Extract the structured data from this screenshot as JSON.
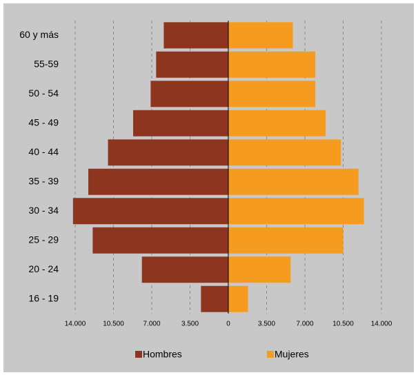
{
  "chart_data": {
    "type": "pyramid",
    "categories": [
      "60 y más",
      "55-59",
      "50 - 54",
      "45 - 49",
      "40 - 44",
      "35 - 39",
      "30 - 34",
      "25 - 29",
      "20 - 24",
      "16 - 19"
    ],
    "series": [
      {
        "name": "Hombres",
        "color": "#8e3520",
        "side": "left",
        "values": [
          5900,
          6600,
          7100,
          8700,
          11000,
          12800,
          14200,
          12400,
          7900,
          2500
        ]
      },
      {
        "name": "Mujeres",
        "color": "#f49b20",
        "side": "right",
        "values": [
          5900,
          7950,
          7950,
          8900,
          10300,
          11900,
          12400,
          10500,
          5700,
          1800
        ]
      }
    ],
    "xlim": [
      0,
      14000
    ],
    "xticks": [
      0,
      {
        "value": 3500,
        "label": "3.500"
      },
      {
        "value": 7000,
        "label": "7.000"
      },
      {
        "value": 10500,
        "label": "10.500"
      },
      {
        "value": 14000,
        "label": "14.000"
      }
    ],
    "grid": true
  }
}
